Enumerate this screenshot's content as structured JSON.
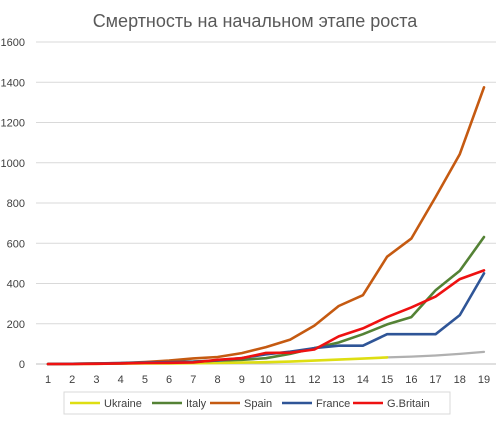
{
  "chart_data": {
    "type": "line",
    "title": "Смертность на начальном этапе роста",
    "xlabel": "",
    "ylabel": "",
    "x": [
      1,
      2,
      3,
      4,
      5,
      6,
      7,
      8,
      9,
      10,
      11,
      12,
      13,
      14,
      15,
      16,
      17,
      18,
      19
    ],
    "ylim": [
      0,
      1600
    ],
    "yticks": [
      0,
      200,
      400,
      600,
      800,
      1000,
      1200,
      1400,
      1600
    ],
    "grid": true,
    "legend_position": "bottom",
    "series": [
      {
        "name": "Ukraine",
        "color": "#dede12",
        "values": [
          0,
          0,
          1,
          2,
          3,
          3,
          4,
          5,
          7,
          9,
          12,
          17,
          22,
          27,
          33,
          null,
          null,
          null,
          null
        ]
      },
      {
        "name": "",
        "color": "#b0b0b0",
        "values": [
          null,
          null,
          null,
          null,
          null,
          null,
          null,
          null,
          null,
          null,
          null,
          null,
          null,
          null,
          33,
          37,
          42,
          50,
          60
        ]
      },
      {
        "name": "Italy",
        "color": "#548235",
        "values": [
          0,
          1,
          2,
          3,
          7,
          10,
          12,
          17,
          21,
          29,
          50,
          79,
          107,
          148,
          197,
          233,
          366,
          463,
          631
        ]
      },
      {
        "name": "Spain",
        "color": "#c55a11",
        "values": [
          0,
          1,
          3,
          5,
          10,
          17,
          28,
          35,
          54,
          84,
          121,
          191,
          288,
          342,
          533,
          623,
          830,
          1043,
          1375
        ]
      },
      {
        "name": "France",
        "color": "#2f5597",
        "values": [
          0,
          1,
          2,
          5,
          7,
          9,
          11,
          18,
          30,
          48,
          61,
          79,
          91,
          91,
          148,
          148,
          148,
          243,
          450
        ]
      },
      {
        "name": "G.Britain",
        "color": "#ee1111",
        "values": [
          0,
          0,
          1,
          3,
          5,
          6,
          8,
          21,
          29,
          55,
          56,
          72,
          137,
          177,
          233,
          281,
          335,
          422,
          465
        ]
      }
    ]
  }
}
